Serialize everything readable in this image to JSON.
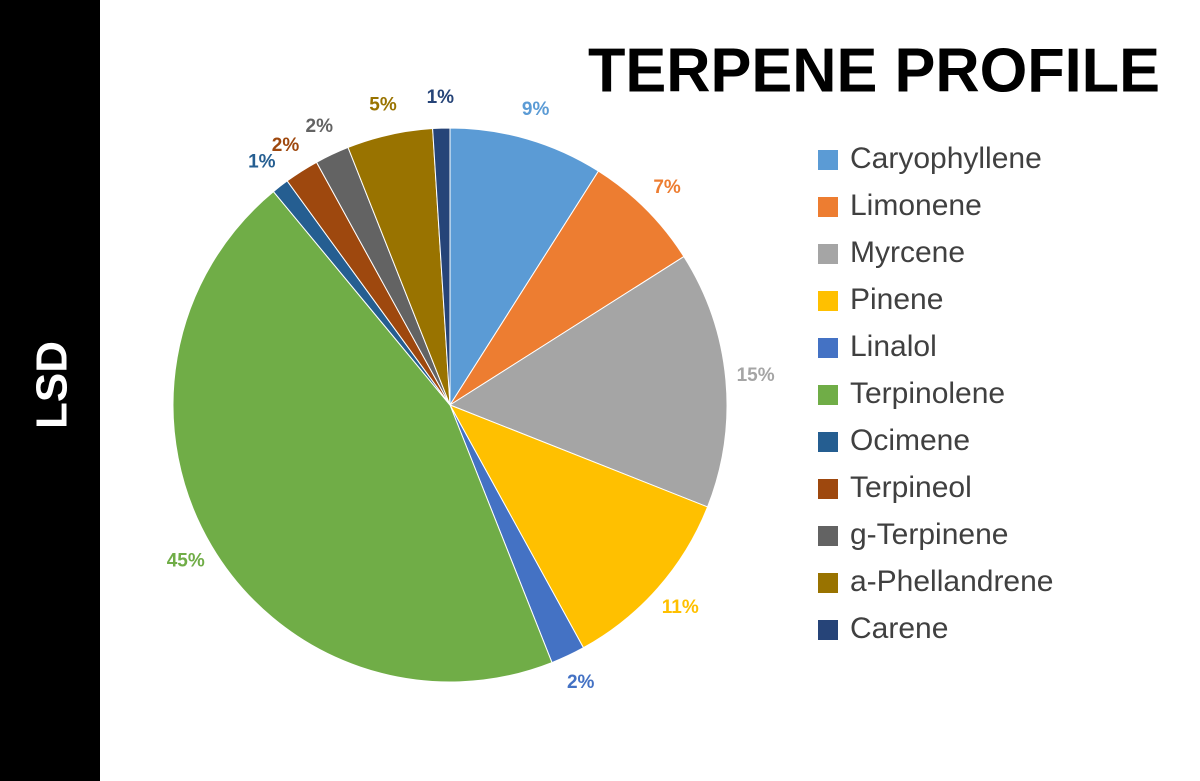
{
  "sidebar_label": "LSD",
  "chart_data": {
    "type": "pie",
    "title": "TERPENE PROFILE",
    "categories": [
      "Caryophyllene",
      "Limonene",
      "Myrcene",
      "Pinene",
      "Linalol",
      "Terpinolene",
      "Ocimene",
      "Terpineol",
      "g-Terpinene",
      "a-Phellandrene",
      "Carene"
    ],
    "values": [
      9,
      7,
      15,
      11,
      2,
      45,
      1,
      2,
      2,
      5,
      1
    ],
    "value_labels": [
      "9%",
      "7%",
      "15%",
      "11%",
      "2%",
      "45%",
      "1%",
      "2%",
      "2%",
      "5%",
      "1%"
    ],
    "colors": [
      "#5b9bd5",
      "#ed7d31",
      "#a5a5a5",
      "#ffc000",
      "#4472c4",
      "#70ad47",
      "#255e91",
      "#9e480e",
      "#636363",
      "#997300",
      "#264478"
    ],
    "legend": "right"
  }
}
